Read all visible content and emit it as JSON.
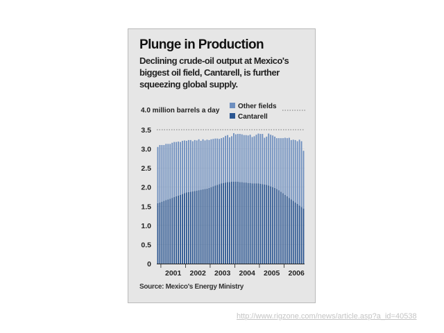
{
  "card": {
    "title": "Plunge in Production",
    "subtitle": "Declining crude-oil output at Mexico's biggest oil field, Cantarell, is further squeezing global supply.",
    "source": "Source: Mexico's Energy Ministry"
  },
  "footer": {
    "url": "http://www.rigzone.com/news/article.asp?a_id=40538"
  },
  "colors": {
    "other_fields": "#6e8fbf",
    "cantarell": "#2b5691",
    "dotted_line": "#777777",
    "background": "#e6e6e6"
  },
  "chart_data": {
    "type": "bar",
    "stacked": true,
    "title": "Plunge in Production",
    "ylabel": "million barrels a day",
    "top_label": "4.0 million barrels a day",
    "ylim": [
      0,
      3.5
    ],
    "yticks": [
      "0",
      "0.5",
      "1.0",
      "1.5",
      "2.0",
      "2.5",
      "3.0",
      "3.5"
    ],
    "ytick_values": [
      0,
      0.5,
      1.0,
      1.5,
      2.0,
      2.5,
      3.0,
      3.5
    ],
    "reference_line": 3.5,
    "x_labels": [
      "2001",
      "2002",
      "2003",
      "2004",
      "2005",
      "2006"
    ],
    "legend": [
      {
        "name": "Other fields",
        "color": "#6e8fbf"
      },
      {
        "name": "Cantarell",
        "color": "#2b5691"
      }
    ],
    "series": [
      {
        "name": "Cantarell",
        "values": [
          1.58,
          1.6,
          1.62,
          1.64,
          1.66,
          1.68,
          1.7,
          1.72,
          1.74,
          1.76,
          1.78,
          1.8,
          1.82,
          1.84,
          1.86,
          1.87,
          1.88,
          1.89,
          1.9,
          1.91,
          1.92,
          1.93,
          1.94,
          1.95,
          1.96,
          1.98,
          2.0,
          2.02,
          2.04,
          2.06,
          2.08,
          2.1,
          2.11,
          2.12,
          2.13,
          2.13,
          2.14,
          2.14,
          2.14,
          2.14,
          2.13,
          2.13,
          2.12,
          2.12,
          2.11,
          2.11,
          2.1,
          2.1,
          2.1,
          2.1,
          2.09,
          2.08,
          2.07,
          2.06,
          2.04,
          2.02,
          2.0,
          1.98,
          1.95,
          1.92,
          1.88,
          1.84,
          1.8,
          1.76,
          1.72,
          1.68,
          1.64,
          1.6,
          1.56,
          1.52,
          1.48,
          1.44
        ]
      },
      {
        "name": "Other fields",
        "values": [
          1.47,
          1.5,
          1.48,
          1.46,
          1.47,
          1.45,
          1.43,
          1.44,
          1.44,
          1.42,
          1.41,
          1.38,
          1.39,
          1.38,
          1.35,
          1.36,
          1.35,
          1.31,
          1.33,
          1.31,
          1.33,
          1.28,
          1.31,
          1.27,
          1.28,
          1.25,
          1.25,
          1.24,
          1.23,
          1.21,
          1.18,
          1.18,
          1.19,
          1.22,
          1.23,
          1.17,
          1.19,
          1.27,
          1.24,
          1.25,
          1.26,
          1.25,
          1.24,
          1.24,
          1.24,
          1.26,
          1.21,
          1.23,
          1.27,
          1.3,
          1.3,
          1.31,
          1.22,
          1.26,
          1.36,
          1.35,
          1.35,
          1.34,
          1.33,
          1.36,
          1.4,
          1.44,
          1.49,
          1.52,
          1.57,
          1.55,
          1.6,
          1.63,
          1.64,
          1.72,
          1.72,
          1.51
        ]
      }
    ],
    "totals_approx": "about 3.0 to 3.4 million barrels a day"
  }
}
